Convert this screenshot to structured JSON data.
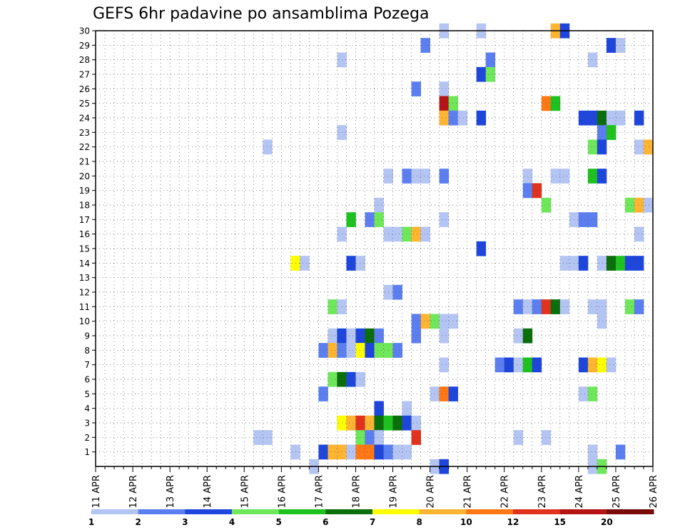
{
  "chart_data": {
    "type": "heatmap",
    "title": "GEFS 6hr padavine po ansamblima Pozega",
    "xlabel": "",
    "ylabel": "",
    "x_tick_labels": [
      "11 APR",
      "12 APR",
      "13 APR",
      "14 APR",
      "15 APR",
      "16 APR",
      "17 APR",
      "18 APR",
      "19 APR",
      "20 APR",
      "21 APR",
      "22 APR",
      "23 APR",
      "24 APR",
      "25 APR",
      "26 APR"
    ],
    "y_tick_labels": [
      "1",
      "2",
      "3",
      "4",
      "5",
      "6",
      "7",
      "8",
      "9",
      "10",
      "11",
      "12",
      "13",
      "14",
      "15",
      "16",
      "17",
      "18",
      "19",
      "20",
      "21",
      "22",
      "23",
      "24",
      "25",
      "26",
      "27",
      "28",
      "29",
      "30"
    ],
    "x_range": [
      0,
      60
    ],
    "y_range": [
      0,
      30
    ],
    "grid": true,
    "legend": {
      "placement": "bottom",
      "levels": [
        "1",
        "2",
        "3",
        "4",
        "5",
        "6",
        "7",
        "8",
        "10",
        "12",
        "15",
        "20"
      ],
      "colors": [
        "#b4c5f4",
        "#5b7ff0",
        "#1e46dc",
        "#6ee85a",
        "#1ec21e",
        "#0a6e0a",
        "#ffff00",
        "#ffb432",
        "#ff7814",
        "#e1321e",
        "#b41414",
        "#780a0a"
      ]
    },
    "color_scale": [
      "#b4c5f4",
      "#5b7ff0",
      "#1e46dc",
      "#6ee85a",
      "#1ec21e",
      "#0a6e0a",
      "#ffff00",
      "#ffb432",
      "#ff7814",
      "#e1321e",
      "#b41414",
      "#780a0a"
    ],
    "cell_notes": "Each cell: [time_step (6h steps from 11 APR 00z), member (1-30), color class index 0-11]",
    "cells": [
      [
        49,
        30,
        7
      ],
      [
        50,
        30,
        2
      ],
      [
        37,
        30,
        0
      ],
      [
        41,
        30,
        0
      ],
      [
        35,
        29,
        1
      ],
      [
        55,
        29,
        2
      ],
      [
        56,
        29,
        0
      ],
      [
        26,
        28,
        0
      ],
      [
        42,
        28,
        1
      ],
      [
        53,
        28,
        0
      ],
      [
        41,
        27,
        2
      ],
      [
        42,
        27,
        3
      ],
      [
        34,
        26,
        1
      ],
      [
        37,
        26,
        0
      ],
      [
        37,
        25,
        10
      ],
      [
        38,
        25,
        3
      ],
      [
        48,
        25,
        8
      ],
      [
        49,
        25,
        4
      ],
      [
        37,
        24,
        7
      ],
      [
        38,
        24,
        1
      ],
      [
        39,
        24,
        0
      ],
      [
        41,
        24,
        2
      ],
      [
        52,
        24,
        2
      ],
      [
        53,
        24,
        2
      ],
      [
        54,
        24,
        5
      ],
      [
        55,
        24,
        0
      ],
      [
        56,
        24,
        0
      ],
      [
        58,
        24,
        2
      ],
      [
        26,
        23,
        0
      ],
      [
        54,
        23,
        1
      ],
      [
        55,
        23,
        4
      ],
      [
        18,
        22,
        0
      ],
      [
        53,
        22,
        3
      ],
      [
        54,
        22,
        2
      ],
      [
        58,
        22,
        0
      ],
      [
        59,
        22,
        7
      ],
      [
        31,
        20,
        0
      ],
      [
        33,
        20,
        1
      ],
      [
        34,
        20,
        0
      ],
      [
        35,
        20,
        0
      ],
      [
        37,
        20,
        1
      ],
      [
        46,
        20,
        0
      ],
      [
        49,
        20,
        0
      ],
      [
        50,
        20,
        0
      ],
      [
        53,
        20,
        4
      ],
      [
        54,
        20,
        2
      ],
      [
        46,
        19,
        1
      ],
      [
        47,
        19,
        9
      ],
      [
        30,
        18,
        0
      ],
      [
        48,
        18,
        3
      ],
      [
        57,
        18,
        3
      ],
      [
        58,
        18,
        7
      ],
      [
        59,
        18,
        0
      ],
      [
        27,
        17,
        4
      ],
      [
        29,
        17,
        1
      ],
      [
        30,
        17,
        3
      ],
      [
        37,
        17,
        0
      ],
      [
        51,
        17,
        0
      ],
      [
        52,
        17,
        1
      ],
      [
        53,
        17,
        1
      ],
      [
        26,
        16,
        0
      ],
      [
        31,
        16,
        0
      ],
      [
        32,
        16,
        0
      ],
      [
        33,
        16,
        3
      ],
      [
        34,
        16,
        7
      ],
      [
        35,
        16,
        0
      ],
      [
        58,
        16,
        0
      ],
      [
        41,
        15,
        2
      ],
      [
        21,
        14,
        6
      ],
      [
        22,
        14,
        0
      ],
      [
        27,
        14,
        2
      ],
      [
        28,
        14,
        0
      ],
      [
        50,
        14,
        0
      ],
      [
        51,
        14,
        0
      ],
      [
        52,
        14,
        2
      ],
      [
        54,
        14,
        0
      ],
      [
        55,
        14,
        5
      ],
      [
        56,
        14,
        4
      ],
      [
        57,
        14,
        2
      ],
      [
        58,
        14,
        2
      ],
      [
        31,
        12,
        0
      ],
      [
        32,
        12,
        1
      ],
      [
        25,
        11,
        3
      ],
      [
        26,
        11,
        0
      ],
      [
        45,
        11,
        1
      ],
      [
        46,
        11,
        0
      ],
      [
        47,
        11,
        1
      ],
      [
        48,
        11,
        9
      ],
      [
        49,
        11,
        5
      ],
      [
        50,
        11,
        0
      ],
      [
        53,
        11,
        0
      ],
      [
        54,
        11,
        0
      ],
      [
        57,
        11,
        3
      ],
      [
        58,
        11,
        1
      ],
      [
        34,
        10,
        1
      ],
      [
        35,
        10,
        7
      ],
      [
        36,
        10,
        3
      ],
      [
        37,
        10,
        0
      ],
      [
        38,
        10,
        0
      ],
      [
        54,
        10,
        0
      ],
      [
        25,
        9,
        0
      ],
      [
        26,
        9,
        2
      ],
      [
        27,
        9,
        0
      ],
      [
        28,
        9,
        2
      ],
      [
        29,
        9,
        5
      ],
      [
        30,
        9,
        1
      ],
      [
        34,
        9,
        1
      ],
      [
        37,
        9,
        0
      ],
      [
        45,
        9,
        0
      ],
      [
        46,
        9,
        5
      ],
      [
        24,
        8,
        1
      ],
      [
        25,
        8,
        7
      ],
      [
        26,
        8,
        1
      ],
      [
        27,
        8,
        0
      ],
      [
        28,
        8,
        6
      ],
      [
        29,
        8,
        2
      ],
      [
        30,
        8,
        3
      ],
      [
        31,
        8,
        3
      ],
      [
        32,
        8,
        1
      ],
      [
        37,
        7,
        0
      ],
      [
        43,
        7,
        1
      ],
      [
        44,
        7,
        2
      ],
      [
        45,
        7,
        0
      ],
      [
        46,
        7,
        4
      ],
      [
        47,
        7,
        2
      ],
      [
        52,
        7,
        2
      ],
      [
        53,
        7,
        7
      ],
      [
        54,
        7,
        6
      ],
      [
        55,
        7,
        0
      ],
      [
        25,
        6,
        3
      ],
      [
        26,
        6,
        5
      ],
      [
        27,
        6,
        2
      ],
      [
        28,
        6,
        0
      ],
      [
        24,
        5,
        1
      ],
      [
        36,
        5,
        0
      ],
      [
        37,
        5,
        8
      ],
      [
        38,
        5,
        2
      ],
      [
        52,
        5,
        0
      ],
      [
        53,
        5,
        3
      ],
      [
        30,
        4,
        2
      ],
      [
        33,
        4,
        0
      ],
      [
        26,
        3,
        6
      ],
      [
        27,
        3,
        7
      ],
      [
        28,
        3,
        9
      ],
      [
        29,
        3,
        7
      ],
      [
        30,
        3,
        5
      ],
      [
        31,
        3,
        4
      ],
      [
        32,
        3,
        5
      ],
      [
        33,
        3,
        2
      ],
      [
        34,
        3,
        0
      ],
      [
        17,
        2,
        0
      ],
      [
        18,
        2,
        0
      ],
      [
        28,
        2,
        3
      ],
      [
        29,
        2,
        1
      ],
      [
        30,
        2,
        0
      ],
      [
        34,
        2,
        9
      ],
      [
        45,
        2,
        0
      ],
      [
        48,
        2,
        0
      ],
      [
        21,
        1,
        0
      ],
      [
        24,
        1,
        2
      ],
      [
        25,
        1,
        7
      ],
      [
        26,
        1,
        7
      ],
      [
        27,
        1,
        0
      ],
      [
        28,
        1,
        8
      ],
      [
        29,
        1,
        8
      ],
      [
        30,
        1,
        2
      ],
      [
        31,
        1,
        1
      ],
      [
        32,
        1,
        0
      ],
      [
        33,
        1,
        0
      ],
      [
        53,
        1,
        0
      ],
      [
        56,
        1,
        1
      ],
      [
        23,
        0,
        0
      ],
      [
        36,
        0,
        0
      ],
      [
        37,
        0,
        2
      ],
      [
        53,
        0,
        0
      ],
      [
        54,
        0,
        3
      ]
    ]
  }
}
